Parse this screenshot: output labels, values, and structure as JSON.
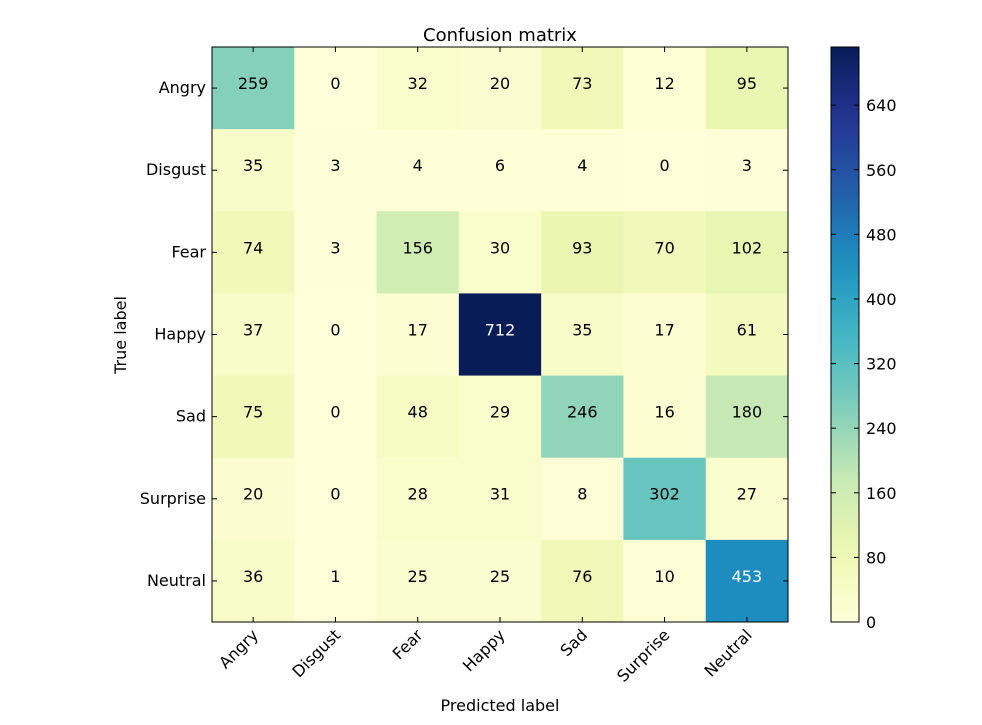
{
  "chart_data": {
    "type": "heatmap",
    "title": "Confusion matrix",
    "xlabel": "Predicted label",
    "ylabel": "True label",
    "x_categories": [
      "Angry",
      "Disgust",
      "Fear",
      "Happy",
      "Sad",
      "Surprise",
      "Neutral"
    ],
    "y_categories": [
      "Angry",
      "Disgust",
      "Fear",
      "Happy",
      "Sad",
      "Surprise",
      "Neutral"
    ],
    "matrix": [
      [
        259,
        0,
        32,
        20,
        73,
        12,
        95
      ],
      [
        35,
        3,
        4,
        6,
        4,
        0,
        3
      ],
      [
        74,
        3,
        156,
        30,
        93,
        70,
        102
      ],
      [
        37,
        0,
        17,
        712,
        35,
        17,
        61
      ],
      [
        75,
        0,
        48,
        29,
        246,
        16,
        180
      ],
      [
        20,
        0,
        28,
        31,
        8,
        302,
        27
      ],
      [
        36,
        1,
        25,
        25,
        76,
        10,
        453
      ]
    ],
    "colorbar": {
      "colormap": "YlGnBu",
      "range": [
        0,
        712
      ],
      "ticks": [
        0,
        80,
        160,
        240,
        320,
        400,
        480,
        560,
        640
      ]
    },
    "x_tick_rotation_deg": 45,
    "grid": false
  }
}
